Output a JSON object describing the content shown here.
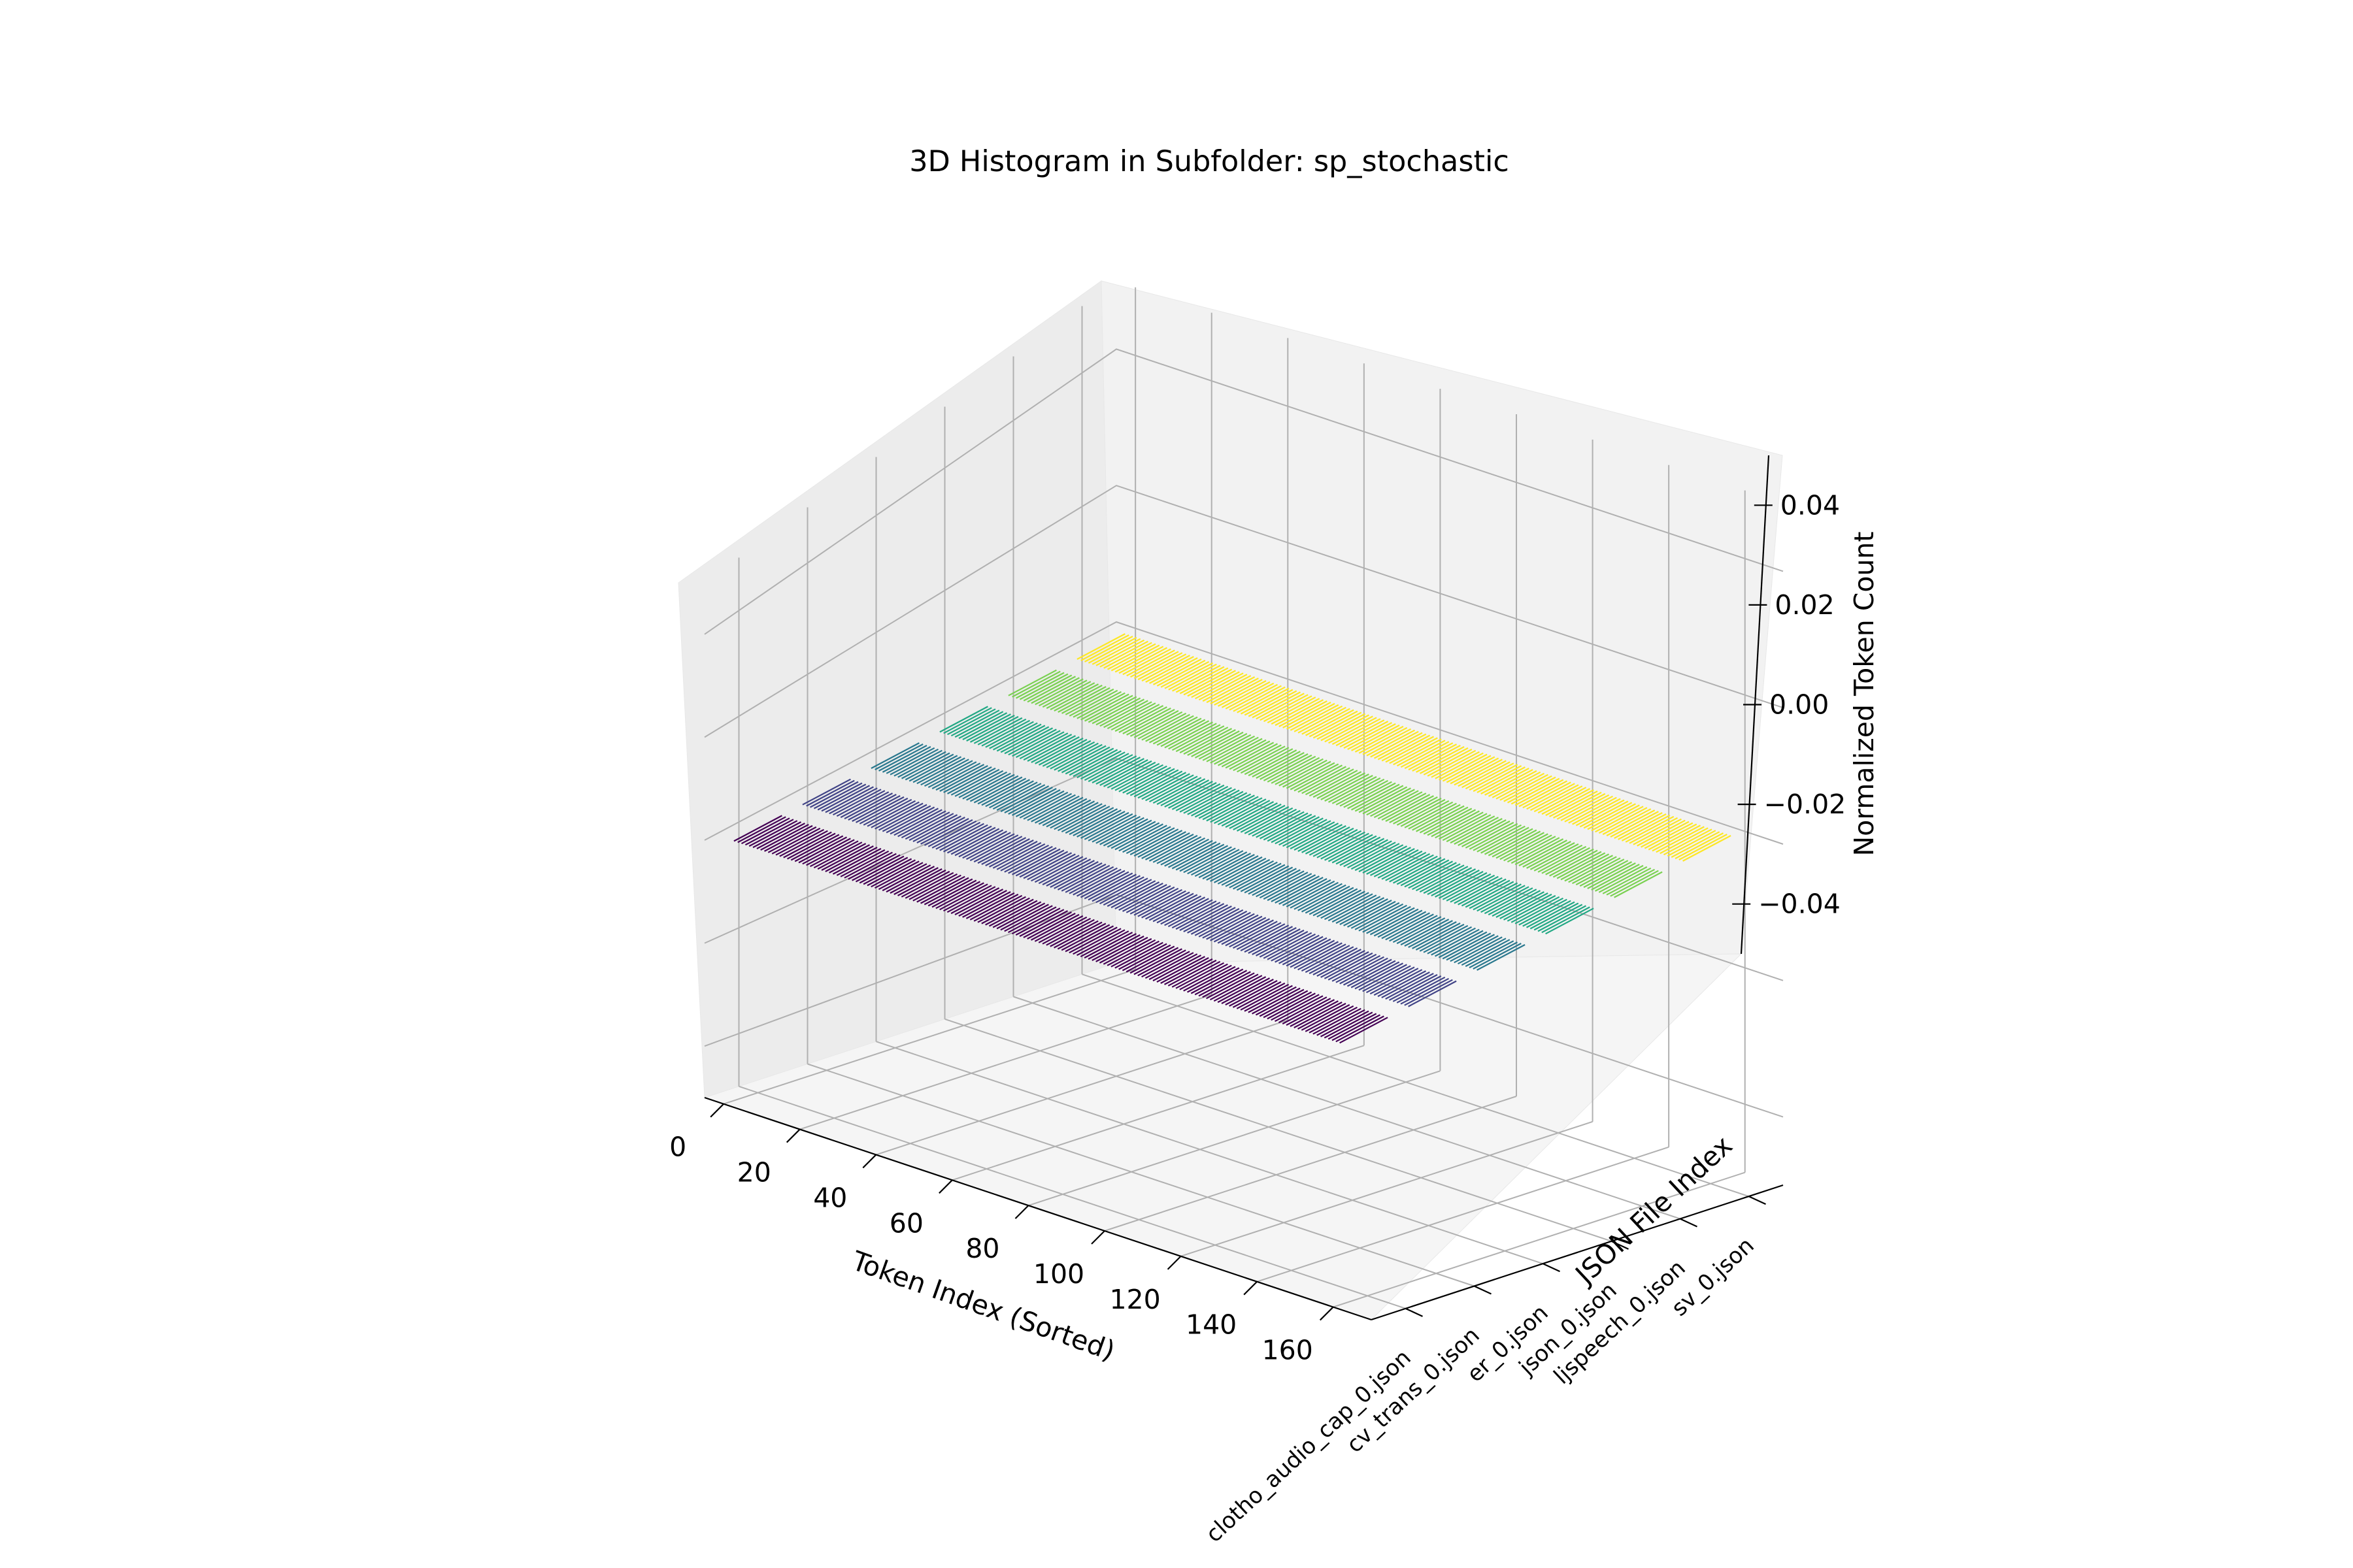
{
  "chart_data": {
    "type": "bar3d",
    "title": "3D Histogram in Subfolder: sp_stochastic",
    "xlabel": "Token Index (Sorted)",
    "ylabel": "JSON File Index",
    "zlabel": "Normalized Token Count",
    "x_ticks": [
      "0",
      "20",
      "40",
      "60",
      "80",
      "100",
      "120",
      "140",
      "160"
    ],
    "z_ticks": [
      "0.04",
      "0.02",
      "0.00",
      "−0.02",
      "−0.04"
    ],
    "xlim": [
      -5,
      170
    ],
    "zlim": [
      -0.05,
      0.05
    ],
    "grid": true,
    "series": [
      {
        "name": "clotho_audio_cap_0.json",
        "color": "#440154",
        "token_count": 160,
        "values": 0
      },
      {
        "name": "cv_trans_0.json",
        "color": "#414487",
        "token_count": 160,
        "values": 0
      },
      {
        "name": "er_0.json",
        "color": "#2a788e",
        "token_count": 160,
        "values": 0
      },
      {
        "name": "json_0.json",
        "color": "#22a884",
        "token_count": 160,
        "values": 0
      },
      {
        "name": "ljspeech_0.json",
        "color": "#7ad151",
        "token_count": 160,
        "values": 0
      },
      {
        "name": "sv_0.json",
        "color": "#fde725",
        "token_count": 160,
        "values": 0
      }
    ]
  }
}
